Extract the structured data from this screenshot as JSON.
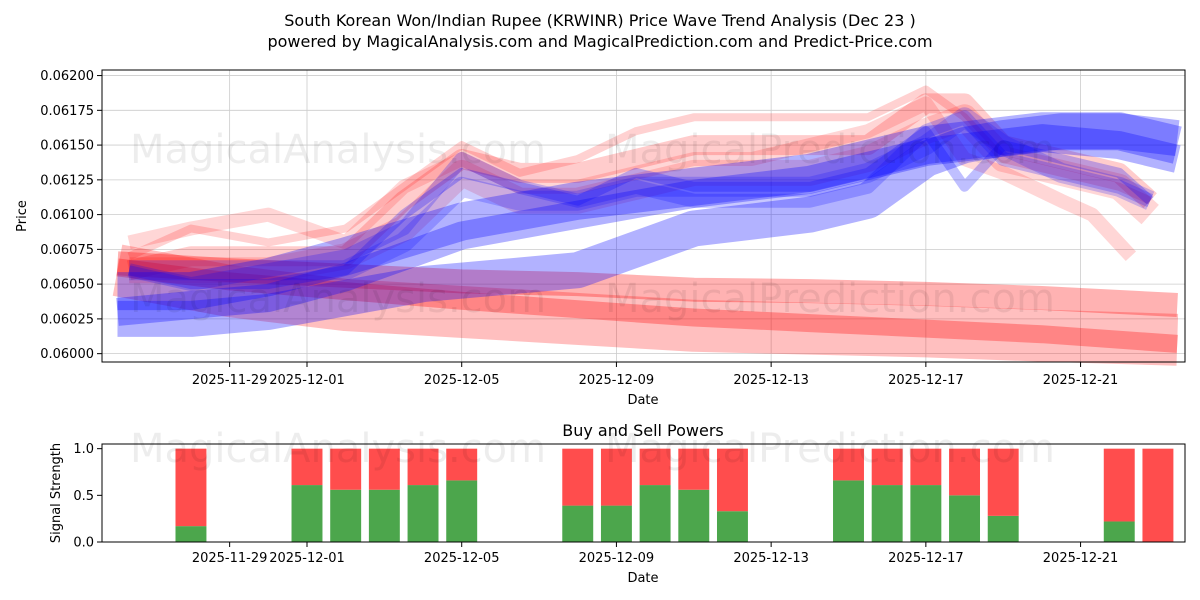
{
  "colors": {
    "red": "#ff0000",
    "blue": "#0000ff",
    "green": "#4ca64c",
    "sell": "#ff4d4d",
    "grid": "#cccccc"
  },
  "chart_data": [
    {
      "type": "line",
      "title": "South Korean Won/Indian Rupee (KRWINR) Price Wave Trend Analysis (Dec 23 )",
      "subtitle": "powered by MagicalAnalysis.com and MagicalPrediction.com and Predict-Price.com",
      "xlabel": "Date",
      "ylabel": "Price",
      "xlim": [
        -3.3,
        24.7
      ],
      "ylim": [
        0.05994,
        0.06204
      ],
      "xticks": [
        {
          "x": 0,
          "label": "2025-11-29"
        },
        {
          "x": 2,
          "label": "2025-12-01"
        },
        {
          "x": 6,
          "label": "2025-12-05"
        },
        {
          "x": 10,
          "label": "2025-12-09"
        },
        {
          "x": 14,
          "label": "2025-12-13"
        },
        {
          "x": 18,
          "label": "2025-12-17"
        },
        {
          "x": 22,
          "label": "2025-12-21"
        }
      ],
      "yticks": [
        "0.06000",
        "0.06025",
        "0.06050",
        "0.06075",
        "0.06100",
        "0.06125",
        "0.06150",
        "0.06175",
        "0.06200"
      ],
      "grid": true,
      "watermarks": [
        "MagicalAnalysis.com",
        "MagicalPrediction.com"
      ],
      "series": [
        {
          "name": "red-wave-1",
          "color": "red",
          "opacity": 0.18,
          "width": 8,
          "x": [
            -2.6,
            -1,
            1,
            3,
            4.5,
            6,
            7.5,
            9,
            10.5,
            12,
            13.5,
            15,
            16.5,
            18,
            19,
            20,
            21.5,
            23,
            23.8
          ],
          "y": [
            0.0607,
            0.0609,
            0.0608,
            0.0609,
            0.0612,
            0.0615,
            0.0613,
            0.0614,
            0.0616,
            0.0617,
            0.0617,
            0.0617,
            0.0617,
            0.0619,
            0.0617,
            0.0614,
            0.0613,
            0.0612,
            0.0611
          ]
        },
        {
          "name": "red-wave-2",
          "color": "red",
          "opacity": 0.2,
          "width": 20,
          "x": [
            -2.6,
            -1,
            1,
            3,
            4.5,
            6,
            7.5,
            9,
            10.5,
            12,
            13.5,
            15,
            16.5,
            18,
            19,
            20,
            21.5,
            23,
            23.8
          ],
          "y": [
            0.0606,
            0.0607,
            0.0607,
            0.0607,
            0.0611,
            0.0614,
            0.0613,
            0.0613,
            0.0614,
            0.0615,
            0.0615,
            0.0615,
            0.0615,
            0.0618,
            0.0618,
            0.0615,
            0.0614,
            0.0613,
            0.0611
          ]
        },
        {
          "name": "red-wave-3",
          "color": "red",
          "opacity": 0.16,
          "width": 26,
          "x": [
            -2.6,
            -1,
            1,
            3,
            4.5,
            6,
            7.5,
            9,
            10.5,
            12,
            13.5,
            15,
            16.5,
            18,
            19,
            20,
            21.5,
            23,
            23.8
          ],
          "y": [
            0.0606,
            0.0606,
            0.0606,
            0.0607,
            0.0609,
            0.0613,
            0.0611,
            0.0611,
            0.0612,
            0.0613,
            0.0613,
            0.0613,
            0.0614,
            0.0616,
            0.0617,
            0.0614,
            0.0613,
            0.0612,
            0.061
          ]
        },
        {
          "name": "red-wave-4",
          "color": "red",
          "opacity": 0.16,
          "width": 14,
          "x": [
            -2.6,
            -1,
            1,
            3,
            4.5,
            6,
            7.5,
            9,
            10.5,
            12,
            13.5,
            15,
            16.5,
            18,
            19,
            20,
            21.5,
            22.3,
            23.3
          ],
          "y": [
            0.0608,
            0.0609,
            0.061,
            0.0608,
            0.0612,
            0.0614,
            0.0612,
            0.0612,
            0.0613,
            0.0614,
            0.0614,
            0.0615,
            0.0616,
            0.0618,
            0.0614,
            0.0613,
            0.0611,
            0.061,
            0.0607
          ]
        },
        {
          "name": "red-band-upper",
          "color": "red",
          "opacity": 0.3,
          "width": 24,
          "x": [
            -2.9,
            0,
            3,
            6,
            9,
            12,
            15,
            18,
            21,
            24.5
          ],
          "y": [
            0.06065,
            0.0606,
            0.06056,
            0.06052,
            0.0605,
            0.06046,
            0.06045,
            0.06043,
            0.0604,
            0.06035
          ]
        },
        {
          "name": "red-band-lower",
          "color": "red",
          "opacity": 0.3,
          "width": 18,
          "x": [
            -2.9,
            0,
            3,
            6,
            9,
            12,
            15,
            18,
            21,
            24.5
          ],
          "y": [
            0.06062,
            0.06052,
            0.06045,
            0.06038,
            0.06032,
            0.06026,
            0.06022,
            0.06018,
            0.06014,
            0.06007
          ]
        },
        {
          "name": "red-channel",
          "color": "red",
          "opacity": 0.25,
          "width": 52,
          "x": [
            -2.9,
            0,
            3,
            6,
            9,
            12,
            15,
            18,
            21,
            24.5
          ],
          "y": [
            0.0606,
            0.06045,
            0.06035,
            0.0603,
            0.06025,
            0.0602,
            0.06018,
            0.06016,
            0.06013,
            0.0601
          ]
        },
        {
          "name": "blue-wave-1",
          "color": "blue",
          "opacity": 0.22,
          "width": 14,
          "x": [
            -2.6,
            -1,
            1,
            3,
            4.5,
            6,
            7.5,
            9,
            10.5,
            12,
            13.5,
            15,
            16.5,
            18,
            19,
            20,
            21.5,
            23,
            23.8
          ],
          "y": [
            0.0606,
            0.0605,
            0.0606,
            0.0607,
            0.0609,
            0.0614,
            0.0612,
            0.0611,
            0.0612,
            0.0611,
            0.0611,
            0.0611,
            0.0612,
            0.0616,
            0.0617,
            0.0614,
            0.0613,
            0.0612,
            0.0611
          ]
        },
        {
          "name": "blue-wave-2",
          "color": "blue",
          "opacity": 0.25,
          "width": 10,
          "x": [
            -2.6,
            -1,
            1,
            3,
            4.5,
            6,
            7.5,
            9,
            10.5,
            12,
            13.5,
            15,
            16.5,
            18,
            19,
            20,
            21.5,
            23,
            23.8
          ],
          "y": [
            0.0606,
            0.0605,
            0.0605,
            0.0606,
            0.061,
            0.0613,
            0.0612,
            0.0611,
            0.0613,
            0.0612,
            0.0612,
            0.0612,
            0.0613,
            0.0616,
            0.0612,
            0.0615,
            0.0614,
            0.0613,
            0.0611
          ]
        },
        {
          "name": "blue-wave-3",
          "color": "blue",
          "opacity": 0.2,
          "width": 20,
          "x": [
            -2.6,
            -1,
            1,
            3,
            4.5,
            6,
            7.5,
            9,
            10.5,
            12,
            13.5,
            15,
            16.5,
            18,
            19,
            20,
            21.5,
            23,
            23.8
          ],
          "y": [
            0.0606,
            0.0606,
            0.0606,
            0.0606,
            0.0608,
            0.0612,
            0.0611,
            0.0611,
            0.0612,
            0.0612,
            0.0612,
            0.0612,
            0.0613,
            0.0615,
            0.0617,
            0.0615,
            0.0613,
            0.0612,
            0.0611
          ]
        },
        {
          "name": "blue-band-1",
          "color": "blue",
          "opacity": 0.3,
          "width": 28,
          "x": [
            -2.9,
            -1,
            1,
            3,
            6,
            9,
            12,
            15,
            18,
            21,
            23,
            24.5
          ],
          "y": [
            0.0603,
            0.06035,
            0.0604,
            0.06055,
            0.06085,
            0.061,
            0.06115,
            0.06125,
            0.06145,
            0.06155,
            0.0615,
            0.0614
          ]
        },
        {
          "name": "blue-band-2",
          "color": "blue",
          "opacity": 0.3,
          "width": 38,
          "x": [
            -2.9,
            -1,
            1,
            3,
            6,
            9,
            12,
            15,
            18,
            21,
            23,
            24.5
          ],
          "y": [
            0.06045,
            0.06045,
            0.06055,
            0.0607,
            0.06095,
            0.0611,
            0.0612,
            0.0613,
            0.0615,
            0.0616,
            0.0616,
            0.0615
          ]
        },
        {
          "name": "blue-channel",
          "color": "blue",
          "opacity": 0.3,
          "width": 36,
          "x": [
            -2.9,
            -1,
            1,
            3,
            5,
            7,
            9,
            10,
            11,
            12,
            13.5,
            15,
            16.5,
            18,
            19,
            20,
            21.5,
            23,
            24.5
          ],
          "y": [
            0.06025,
            0.06025,
            0.0603,
            0.0604,
            0.0605,
            0.06055,
            0.0606,
            0.0607,
            0.0608,
            0.0609,
            0.06095,
            0.061,
            0.0611,
            0.0614,
            0.0615,
            0.06155,
            0.0616,
            0.0616,
            0.06155
          ]
        }
      ]
    },
    {
      "type": "bar",
      "title": "Buy and Sell Powers",
      "xlabel": "Date",
      "ylabel": "Signal Strength",
      "xlim": [
        -3.3,
        24.7
      ],
      "ylim": [
        0,
        1.05
      ],
      "xticks": [
        {
          "x": 0,
          "label": "2025-11-29"
        },
        {
          "x": 2,
          "label": "2025-12-01"
        },
        {
          "x": 6,
          "label": "2025-12-05"
        },
        {
          "x": 10,
          "label": "2025-12-09"
        },
        {
          "x": 14,
          "label": "2025-12-13"
        },
        {
          "x": 18,
          "label": "2025-12-17"
        },
        {
          "x": 22,
          "label": "2025-12-21"
        }
      ],
      "yticks": [
        "0.0",
        "0.5",
        "1.0"
      ],
      "bars": [
        {
          "date": "2025-11-28",
          "x": -1,
          "buy": 0.17,
          "sell": 0.83
        },
        {
          "date": "2025-12-01",
          "x": 2,
          "buy": 0.61,
          "sell": 0.39
        },
        {
          "date": "2025-12-02",
          "x": 3,
          "buy": 0.56,
          "sell": 0.44
        },
        {
          "date": "2025-12-03",
          "x": 4,
          "buy": 0.56,
          "sell": 0.44
        },
        {
          "date": "2025-12-04",
          "x": 5,
          "buy": 0.61,
          "sell": 0.39
        },
        {
          "date": "2025-12-05",
          "x": 6,
          "buy": 0.66,
          "sell": 0.34
        },
        {
          "date": "2025-12-08",
          "x": 9,
          "buy": 0.39,
          "sell": 0.61
        },
        {
          "date": "2025-12-09",
          "x": 10,
          "buy": 0.39,
          "sell": 0.61
        },
        {
          "date": "2025-12-10",
          "x": 11,
          "buy": 0.61,
          "sell": 0.39
        },
        {
          "date": "2025-12-11",
          "x": 12,
          "buy": 0.56,
          "sell": 0.44
        },
        {
          "date": "2025-12-12",
          "x": 13,
          "buy": 0.33,
          "sell": 0.67
        },
        {
          "date": "2025-12-15",
          "x": 16,
          "buy": 0.66,
          "sell": 0.34
        },
        {
          "date": "2025-12-16",
          "x": 17,
          "buy": 0.61,
          "sell": 0.39
        },
        {
          "date": "2025-12-17",
          "x": 18,
          "buy": 0.61,
          "sell": 0.39
        },
        {
          "date": "2025-12-18",
          "x": 19,
          "buy": 0.5,
          "sell": 0.5
        },
        {
          "date": "2025-12-19",
          "x": 20,
          "buy": 0.28,
          "sell": 0.72
        },
        {
          "date": "2025-12-22",
          "x": 23,
          "buy": 0.22,
          "sell": 0.78
        },
        {
          "date": "2025-12-23",
          "x": 24,
          "buy": 0.0,
          "sell": 1.0
        }
      ],
      "watermarks": [
        "MagicalAnalysis.com",
        "MagicalPrediction.com"
      ]
    }
  ]
}
